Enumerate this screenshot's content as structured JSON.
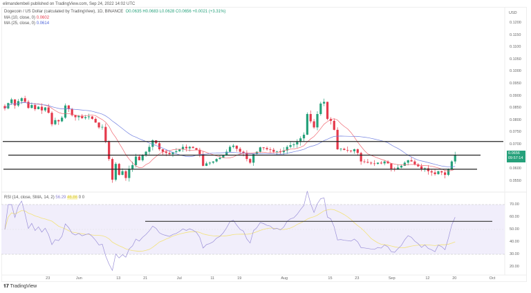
{
  "publisher": "elimandembeli published on TradingView.com, Sep 24, 2022 14:02 UTC",
  "legend": {
    "symbol": "Dogecoin / US Dollar (calculated by TradingView), 1D, BINANCE",
    "ohlc": "O0.0635 H0.0683 L0.0628 C0.0656 +0.0021 (+3.31%)",
    "ma1_label": "MA (10, close, 0)",
    "ma1_value": "0.0602",
    "ma2_label": "MA (25, close, 0)",
    "ma2_value": "0.0614",
    "rsi_label": "RSI (14, close, SMA, 14, 2)",
    "rsi_value": "56.29",
    "rsi_sma_value": "46.86",
    "rsi_extra1": "0",
    "rsi_extra2": "0"
  },
  "price_tag": {
    "price": "0.0656",
    "countdown": "09:57:14"
  },
  "footer": {
    "logo": "TradingView"
  },
  "colors": {
    "up": "#26a17b",
    "down": "#e5394b",
    "ma1": "#f06670",
    "ma2": "#6f7fe0",
    "rsi": "#9a8fd8",
    "rsi_sma": "#f3e27a"
  },
  "chart_data": {
    "type": "candlestick",
    "currency": "USD",
    "price_axis": [
      "0.1200",
      "0.1150",
      "0.1100",
      "0.1050",
      "0.1000",
      "0.0950",
      "0.0900",
      "0.0850",
      "0.0800",
      "0.0750",
      "0.0700",
      "0.0600",
      "0.0550"
    ],
    "price_range": [
      0.0505,
      0.1235
    ],
    "rsi_axis": [
      "70.00",
      "60.00",
      "50.00",
      "40.00",
      "30.00",
      "20.00"
    ],
    "rsi_range": [
      15,
      75
    ],
    "x_labels": [
      {
        "label": "23",
        "day": 13
      },
      {
        "label": "Jun",
        "day": 22
      },
      {
        "label": "13",
        "day": 34
      },
      {
        "label": "21",
        "day": 42
      },
      {
        "label": "Jul",
        "day": 52
      },
      {
        "label": "11",
        "day": 62
      },
      {
        "label": "19",
        "day": 70
      },
      {
        "label": "Aug",
        "day": 83
      },
      {
        "label": "15",
        "day": 97
      },
      {
        "label": "23",
        "day": 105
      },
      {
        "label": "Sep",
        "day": 115
      },
      {
        "label": "12",
        "day": 126
      },
      {
        "label": "20",
        "day": 134
      },
      {
        "label": "Oct",
        "day": 145
      }
    ],
    "close": [
      0.0848,
      0.087,
      0.0885,
      0.086,
      0.0878,
      0.089,
      0.0875,
      0.085,
      0.0862,
      0.0845,
      0.0855,
      0.084,
      0.0852,
      0.083,
      0.0783,
      0.08,
      0.0795,
      0.081,
      0.086,
      0.0845,
      0.082,
      0.0812,
      0.0818,
      0.0808,
      0.0812,
      0.0815,
      0.0805,
      0.079,
      0.077,
      0.0772,
      0.071,
      0.064,
      0.0555,
      0.062,
      0.0575,
      0.059,
      0.0562,
      0.06,
      0.0615,
      0.065,
      0.0635,
      0.0655,
      0.067,
      0.069,
      0.0717,
      0.0705,
      0.068,
      0.067,
      0.0665,
      0.066,
      0.0668,
      0.0672,
      0.068,
      0.069,
      0.0684,
      0.069,
      0.0685,
      0.0678,
      0.066,
      0.0612,
      0.0622,
      0.0625,
      0.063,
      0.064,
      0.0645,
      0.0655,
      0.067,
      0.069,
      0.0695,
      0.0682,
      0.067,
      0.0665,
      0.064,
      0.0625,
      0.066,
      0.067,
      0.0688,
      0.0685,
      0.068,
      0.0678,
      0.067,
      0.0672,
      0.0668,
      0.0675,
      0.069,
      0.0697,
      0.07,
      0.071,
      0.0725,
      0.074,
      0.0825,
      0.0795,
      0.077,
      0.0825,
      0.0868,
      0.0875,
      0.0805,
      0.0797,
      0.076,
      0.068,
      0.0682,
      0.0677,
      0.0675,
      0.0672,
      0.068,
      0.0665,
      0.063,
      0.0628,
      0.0625,
      0.0622,
      0.062,
      0.0625,
      0.0622,
      0.063,
      0.0622,
      0.06,
      0.0597,
      0.0605,
      0.0612,
      0.0625,
      0.0635,
      0.063,
      0.0618,
      0.061,
      0.0597,
      0.0602,
      0.059,
      0.0585,
      0.0578,
      0.059,
      0.0585,
      0.0575,
      0.0597,
      0.063,
      0.0656
    ],
    "horizontal_levels": [
      0.0712,
      0.0656,
      0.0598
    ],
    "rsi_level": 56.5
  }
}
